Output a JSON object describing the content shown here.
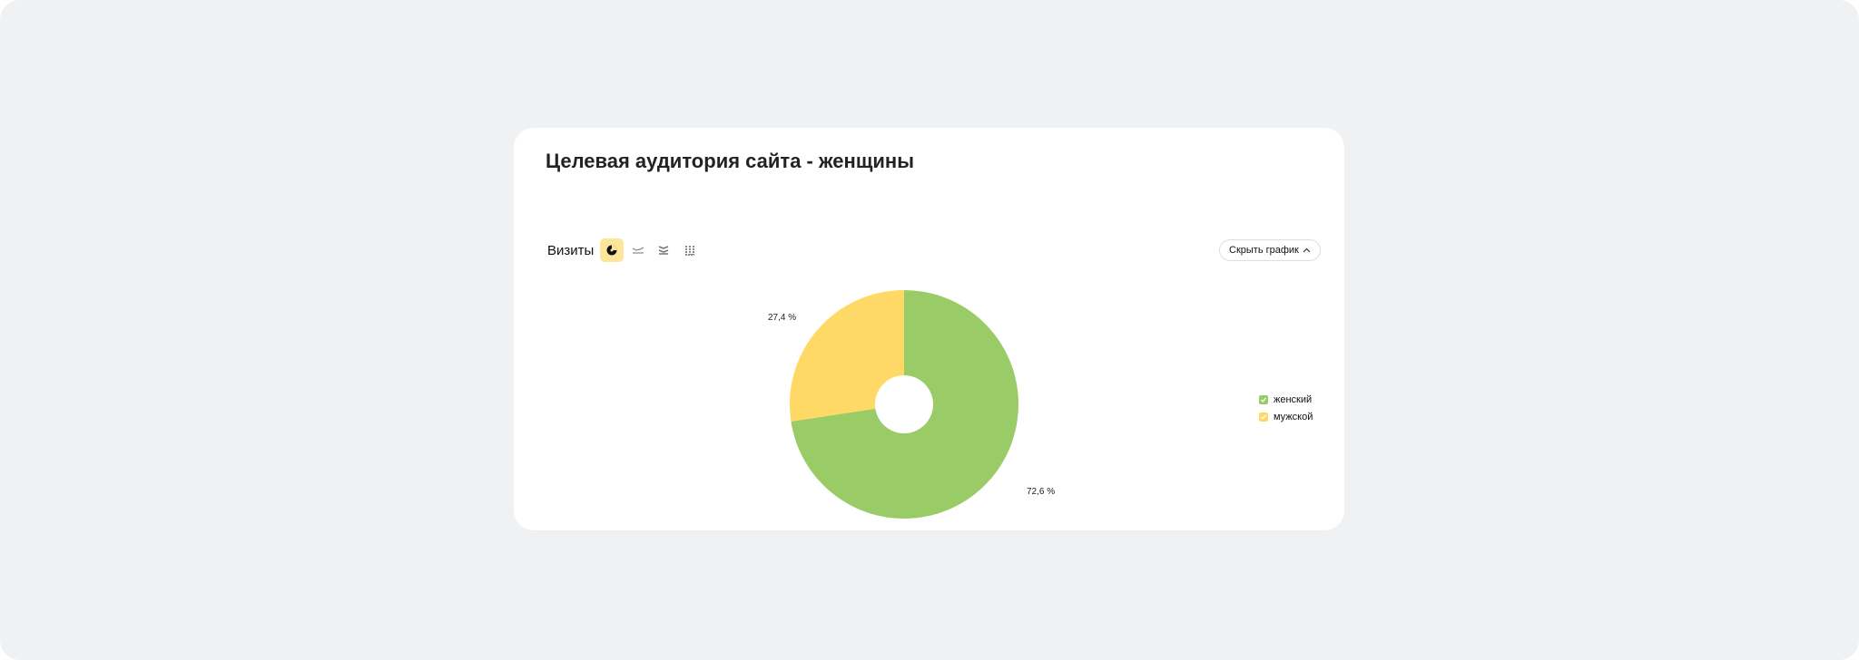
{
  "card": {
    "title": "Целевая аудитория сайта - женщины"
  },
  "toolbar": {
    "metric_label": "Визиты",
    "chart_types": [
      {
        "icon": "pie-chart-icon",
        "active": true
      },
      {
        "icon": "line-chart-icon",
        "active": false
      },
      {
        "icon": "area-chart-icon",
        "active": false
      },
      {
        "icon": "bar-chart-icon",
        "active": false
      }
    ],
    "hide_chart_label": "Скрыть график"
  },
  "chart_data": {
    "type": "pie",
    "donut": true,
    "categories": [
      "женский",
      "мужской"
    ],
    "values": [
      72.6,
      27.4
    ],
    "data_labels": [
      "72,6 %",
      "27,4 %"
    ],
    "colors": [
      "#99cc66",
      "#ffd966"
    ],
    "legend_position": "right"
  }
}
